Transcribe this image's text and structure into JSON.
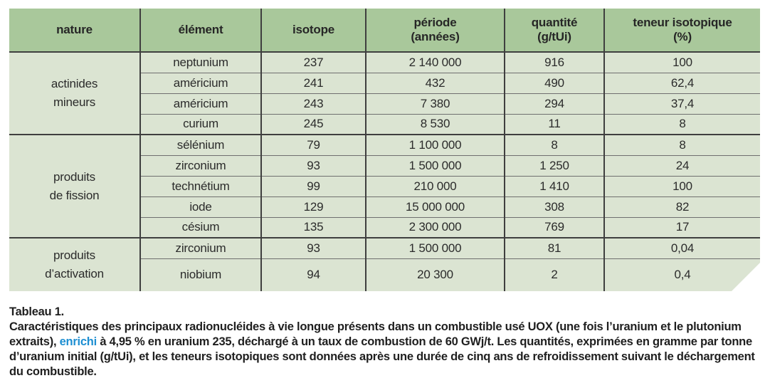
{
  "table": {
    "columns": [
      {
        "label": "nature",
        "sub": ""
      },
      {
        "label": "élément",
        "sub": ""
      },
      {
        "label": "isotope",
        "sub": ""
      },
      {
        "label": "période",
        "sub": "(années)"
      },
      {
        "label": "quantité",
        "sub": "(g/tUi)"
      },
      {
        "label": "teneur isotopique",
        "sub": "(%)"
      }
    ],
    "groups": [
      {
        "nature": "actinides\nmineurs",
        "rows": [
          [
            "neptunium",
            "237",
            "2 140 000",
            "916",
            "100"
          ],
          [
            "américium",
            "241",
            "432",
            "490",
            "62,4"
          ],
          [
            "américium",
            "243",
            "7 380",
            "294",
            "37,4"
          ],
          [
            "curium",
            "245",
            "8 530",
            "11",
            "8"
          ]
        ]
      },
      {
        "nature": "produits\nde fission",
        "rows": [
          [
            "sélénium",
            "79",
            "1 100 000",
            "8",
            "8"
          ],
          [
            "zirconium",
            "93",
            "1 500 000",
            "1 250",
            "24"
          ],
          [
            "technétium",
            "99",
            "210 000",
            "1 410",
            "100"
          ],
          [
            "iode",
            "129",
            "15 000 000",
            "308",
            "82"
          ],
          [
            "césium",
            "135",
            "2 300 000",
            "769",
            "17"
          ]
        ]
      },
      {
        "nature": "produits\nd’activation",
        "rows": [
          [
            "zirconium",
            "93",
            "1 500 000",
            "81",
            "0,04"
          ],
          [
            "niobium",
            "94",
            "20 300",
            "2",
            "0,4"
          ]
        ]
      }
    ]
  },
  "caption": {
    "title": "Tableau 1.",
    "text_before": "Caractéristiques des principaux radionucléides à vie longue présents dans un combustible usé UOX (une fois l’uranium et le plutonium extraits), ",
    "highlight": "enrichi",
    "text_after": " à 4,95 % en uranium 235, déchargé à un taux de combustion de 60 GWj/t. Les quantités, exprimées en gramme par tonne d’uranium initial (g/tUi), et les teneurs isotopiques sont données après une durée de cinq ans de refroidissement suivant le déchargement du combustible."
  },
  "colors": {
    "header_green": "#a9c89b",
    "body_green": "#dbe4d2",
    "line_dark": "#3f3f3f",
    "line_gray": "#6f6f6f",
    "text": "#262626",
    "highlight_blue": "#1e8fd2"
  }
}
